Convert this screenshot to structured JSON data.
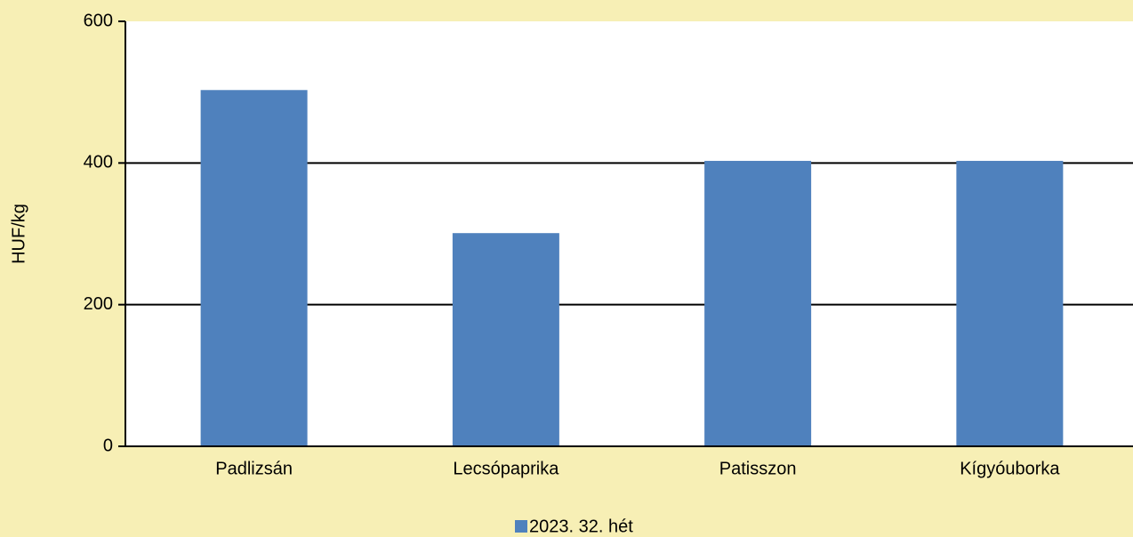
{
  "chart_data": {
    "type": "bar",
    "y_label": "HUF/kg",
    "categories": [
      "Padlizsán",
      "Lecsópaprika",
      "Patisszon",
      "Kígyóuborka"
    ],
    "series": [
      {
        "name": "2023. 32. hét",
        "color": "#4f81bd",
        "values": [
          503,
          301,
          403,
          403
        ]
      }
    ],
    "ylim": [
      0,
      600
    ],
    "yticks": [
      0,
      200,
      400,
      600
    ],
    "grid": true,
    "legend": "bottom"
  }
}
